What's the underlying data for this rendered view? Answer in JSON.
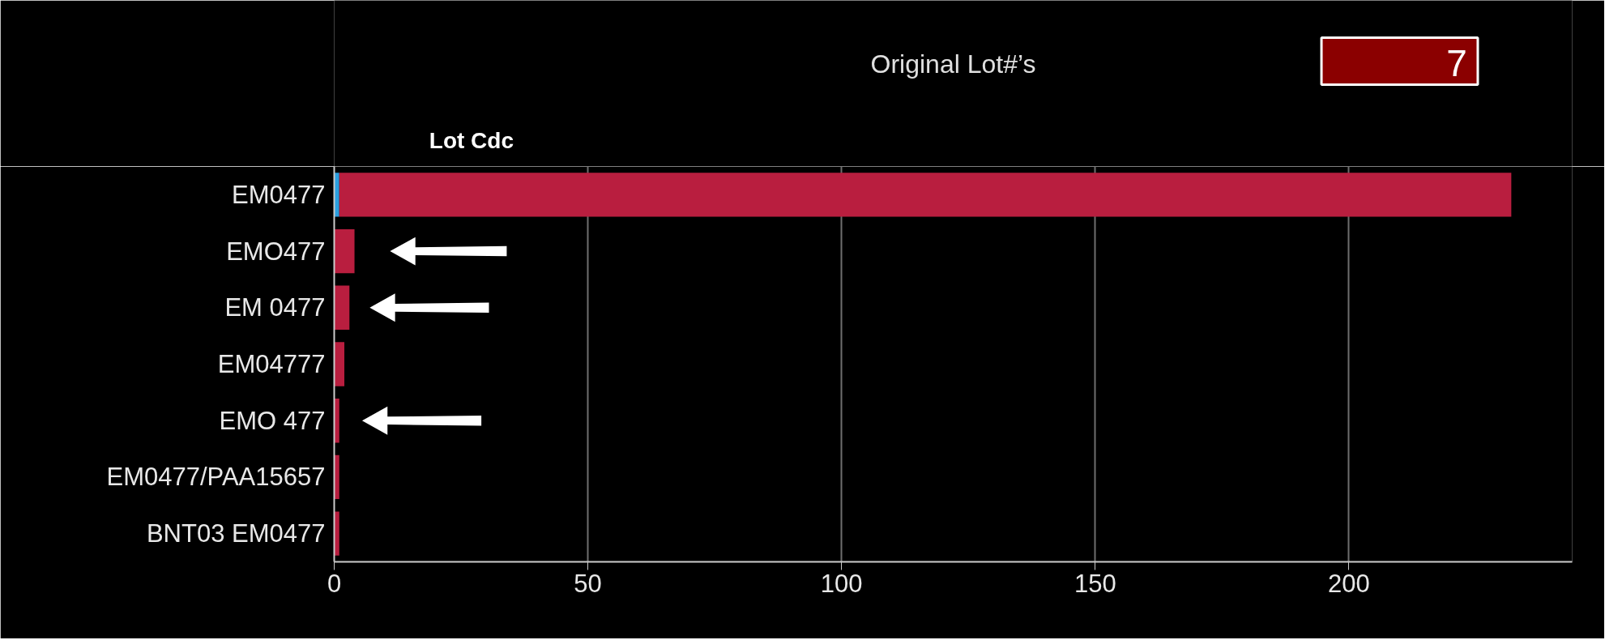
{
  "chart_data": {
    "type": "bar",
    "orientation": "horizontal",
    "stacked": true,
    "title": "Original Lot#’s",
    "ylabel": "Lot Cdc",
    "categories": [
      "EM0477",
      "EMO477",
      "EM 0477",
      "EM04777",
      "EMO 477",
      "EM0477/PAA15657",
      "BNT03 EM0477"
    ],
    "series": [
      {
        "color": "#2a9fe0",
        "values": [
          1,
          null,
          null,
          null,
          null,
          null,
          null
        ]
      },
      {
        "color": "#b91e3f",
        "values": [
          231,
          4,
          3,
          2,
          1,
          1,
          1
        ]
      }
    ],
    "xlim": [
      0,
      244
    ],
    "xticks": [
      0,
      50,
      100,
      150,
      200
    ],
    "grid": "x",
    "annotations": [
      "7"
    ]
  }
}
